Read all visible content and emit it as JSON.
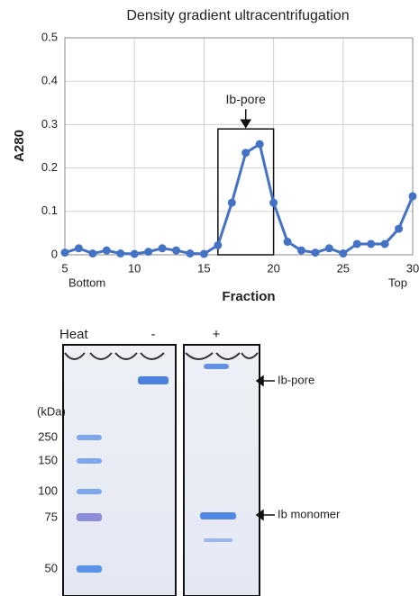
{
  "chart_data": {
    "type": "line",
    "title": "Density gradient ultracentrifugation",
    "x_label": "Fraction",
    "y_label": "A280",
    "x": [
      5,
      6,
      7,
      8,
      9,
      10,
      11,
      12,
      13,
      14,
      15,
      16,
      17,
      18,
      19,
      20,
      21,
      22,
      23,
      24,
      25,
      26,
      27,
      28,
      29,
      30
    ],
    "series": [
      {
        "name": "A280",
        "color": "#4472c4",
        "values": [
          0.005,
          0.015,
          0.003,
          0.01,
          0.003,
          0.002,
          0.007,
          0.015,
          0.01,
          0.003,
          0.002,
          0.022,
          0.12,
          0.235,
          0.255,
          0.12,
          0.03,
          0.01,
          0.005,
          0.015,
          0.003,
          0.025,
          0.025,
          0.025,
          0.06,
          0.135
        ]
      }
    ],
    "xlim": [
      5,
      30
    ],
    "ylim": [
      0,
      0.5
    ],
    "xticks": [
      5,
      10,
      15,
      20,
      25,
      30
    ],
    "yticks": [
      0,
      0.1,
      0.2,
      0.3,
      0.4,
      0.5
    ],
    "grid": true,
    "x_end_labels": [
      "Bottom",
      "Top"
    ],
    "highlight": {
      "label": "Ib-pore",
      "xlim": [
        16,
        20
      ],
      "ylim": [
        0,
        0.29
      ]
    }
  },
  "gel": {
    "heat_label": "Heat",
    "lanes": [
      "-",
      "+"
    ],
    "unit": "(kDa)",
    "markers": [
      "250",
      "150",
      "100",
      "75",
      "50"
    ],
    "bands": [
      "Ib-pore",
      "Ib monomer"
    ]
  }
}
